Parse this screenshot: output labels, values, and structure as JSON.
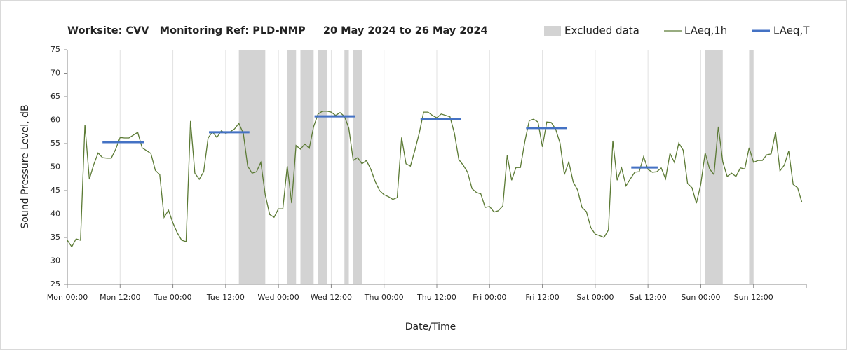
{
  "chart_data": {
    "type": "line",
    "title": "Worksite: CVV   Monitoring Ref: PLD-NMP     20 May 2024 to 26 May 2024",
    "xlabel": "Date/Time",
    "ylabel": "Sound Pressure Level, dB",
    "xlim": [
      0,
      168
    ],
    "xticks": [
      {
        "value": 0,
        "label": "Mon 00:00"
      },
      {
        "value": 12,
        "label": "Mon 12:00"
      },
      {
        "value": 24,
        "label": "Tue 00:00"
      },
      {
        "value": 36,
        "label": "Tue 12:00"
      },
      {
        "value": 48,
        "label": "Wed 00:00"
      },
      {
        "value": 60,
        "label": "Wed 12:00"
      },
      {
        "value": 72,
        "label": "Thu 00:00"
      },
      {
        "value": 84,
        "label": "Thu 12:00"
      },
      {
        "value": 96,
        "label": "Fri 00:00"
      },
      {
        "value": 108,
        "label": "Fri 12:00"
      },
      {
        "value": 120,
        "label": "Sat 00:00"
      },
      {
        "value": 132,
        "label": "Sat 12:00"
      },
      {
        "value": 144,
        "label": "Sun 00:00"
      },
      {
        "value": 156,
        "label": "Sun 12:00"
      }
    ],
    "ylim": [
      25,
      75
    ],
    "yticks": [
      25,
      30,
      35,
      40,
      45,
      50,
      55,
      60,
      65,
      70,
      75
    ],
    "grid": "x",
    "excluded": {
      "name": "Excluded data",
      "color": "#d3d3d3",
      "ranges": [
        [
          39,
          45
        ],
        [
          50,
          52
        ],
        [
          53,
          56
        ],
        [
          57,
          59
        ],
        [
          63,
          64
        ],
        [
          65,
          67
        ],
        [
          145,
          149
        ],
        [
          155,
          156
        ]
      ]
    },
    "series": [
      {
        "name": "LAeq,1h",
        "color": "#5b7a34",
        "x": [
          0,
          1,
          2,
          3,
          4,
          5,
          6,
          7,
          8,
          9,
          10,
          11,
          12,
          13,
          14,
          15,
          16,
          17,
          18,
          19,
          20,
          21,
          22,
          23,
          24,
          25,
          26,
          27,
          28,
          29,
          30,
          31,
          32,
          33,
          34,
          35,
          36,
          37,
          38,
          39,
          40,
          41,
          42,
          43,
          44,
          45,
          46,
          47,
          48,
          49,
          50,
          51,
          52,
          53,
          54,
          55,
          56,
          57,
          58,
          59,
          60,
          61,
          62,
          63,
          64,
          65,
          66,
          67,
          68,
          69,
          70,
          71,
          72,
          73,
          74,
          75,
          76,
          77,
          78,
          79,
          80,
          81,
          82,
          83,
          84,
          85,
          86,
          87,
          88,
          89,
          90,
          91,
          92,
          93,
          94,
          95,
          96,
          97,
          98,
          99,
          100,
          101,
          102,
          103,
          104,
          105,
          106,
          107,
          108,
          109,
          110,
          111,
          112,
          113,
          114,
          115,
          116,
          117,
          118,
          119,
          120,
          121,
          122,
          123,
          124,
          125,
          126,
          127,
          128,
          129,
          130,
          131,
          132,
          133,
          134,
          135,
          136,
          137,
          138,
          139,
          140,
          141,
          142,
          143,
          144,
          145,
          146,
          147,
          148,
          149,
          150,
          151,
          152,
          153,
          154,
          155,
          156,
          157,
          158,
          159,
          160,
          161,
          162,
          163,
          164,
          165,
          166,
          167
        ],
        "values": [
          34.4,
          33,
          34.7,
          34.4,
          59,
          47.4,
          50.5,
          53,
          52,
          51.9,
          51.9,
          53.8,
          56.3,
          56.2,
          56.2,
          56.8,
          57.4,
          54.1,
          53.5,
          52.9,
          49.3,
          48.4,
          39.3,
          40.8,
          38.1,
          36,
          34.4,
          34.1,
          59.8,
          48.7,
          47.4,
          49,
          56.2,
          57.5,
          56.3,
          57.7,
          57.2,
          57.5,
          58.1,
          59.3,
          57.2,
          50.2,
          48.7,
          49,
          51,
          44.1,
          39.9,
          39.3,
          41.1,
          41.1,
          50.2,
          42.3,
          54.6,
          53.8,
          54.9,
          54,
          58.6,
          61.3,
          61.9,
          61.9,
          61.7,
          61,
          61.6,
          60.8,
          58.3,
          51.4,
          52,
          50.7,
          51.4,
          49.5,
          46.9,
          45,
          44.1,
          43.7,
          43.1,
          43.5,
          56.3,
          50.7,
          50.2,
          53.5,
          57.2,
          61.7,
          61.7,
          61,
          60.5,
          61.3,
          61,
          60.7,
          57.2,
          51.6,
          50.4,
          48.9,
          45.4,
          44.6,
          44.3,
          41.4,
          41.6,
          40.4,
          40.7,
          41.7,
          52.5,
          47.2,
          49.9,
          49.9,
          55.4,
          59.9,
          60.2,
          59.6,
          54.3,
          59.6,
          59.5,
          58.1,
          55.1,
          48.4,
          51.1,
          46.8,
          45.1,
          41.4,
          40.5,
          37.1,
          35.7,
          35.4,
          35,
          36.6,
          55.6,
          47.2,
          49.8,
          46,
          47.5,
          48.9,
          49,
          52.2,
          49.5,
          48.9,
          49,
          49.8,
          47.5,
          52.9,
          51,
          55.1,
          53.6,
          46.5,
          45.6,
          42.3,
          46.3,
          53,
          49.6,
          48.4,
          58.6,
          51.1,
          48,
          48.7,
          48,
          49.8,
          49.6,
          54.1,
          51,
          51.4,
          51.4,
          52.6,
          52.8,
          57.4,
          49.2,
          50.4,
          53.4,
          46.3,
          45.6,
          42.5
        ]
      }
    ],
    "periods": {
      "name": "LAeq,T",
      "color": "#4472c4",
      "segments": [
        {
          "start": 8,
          "end": 17.4,
          "value": 55.3
        },
        {
          "start": 32.2,
          "end": 41.4,
          "value": 57.4
        },
        {
          "start": 56.2,
          "end": 65.5,
          "value": 60.8
        },
        {
          "start": 80.3,
          "end": 89.5,
          "value": 60.2
        },
        {
          "start": 104.3,
          "end": 113.6,
          "value": 58.3
        },
        {
          "start": 128.2,
          "end": 134.2,
          "value": 49.9
        }
      ]
    }
  }
}
